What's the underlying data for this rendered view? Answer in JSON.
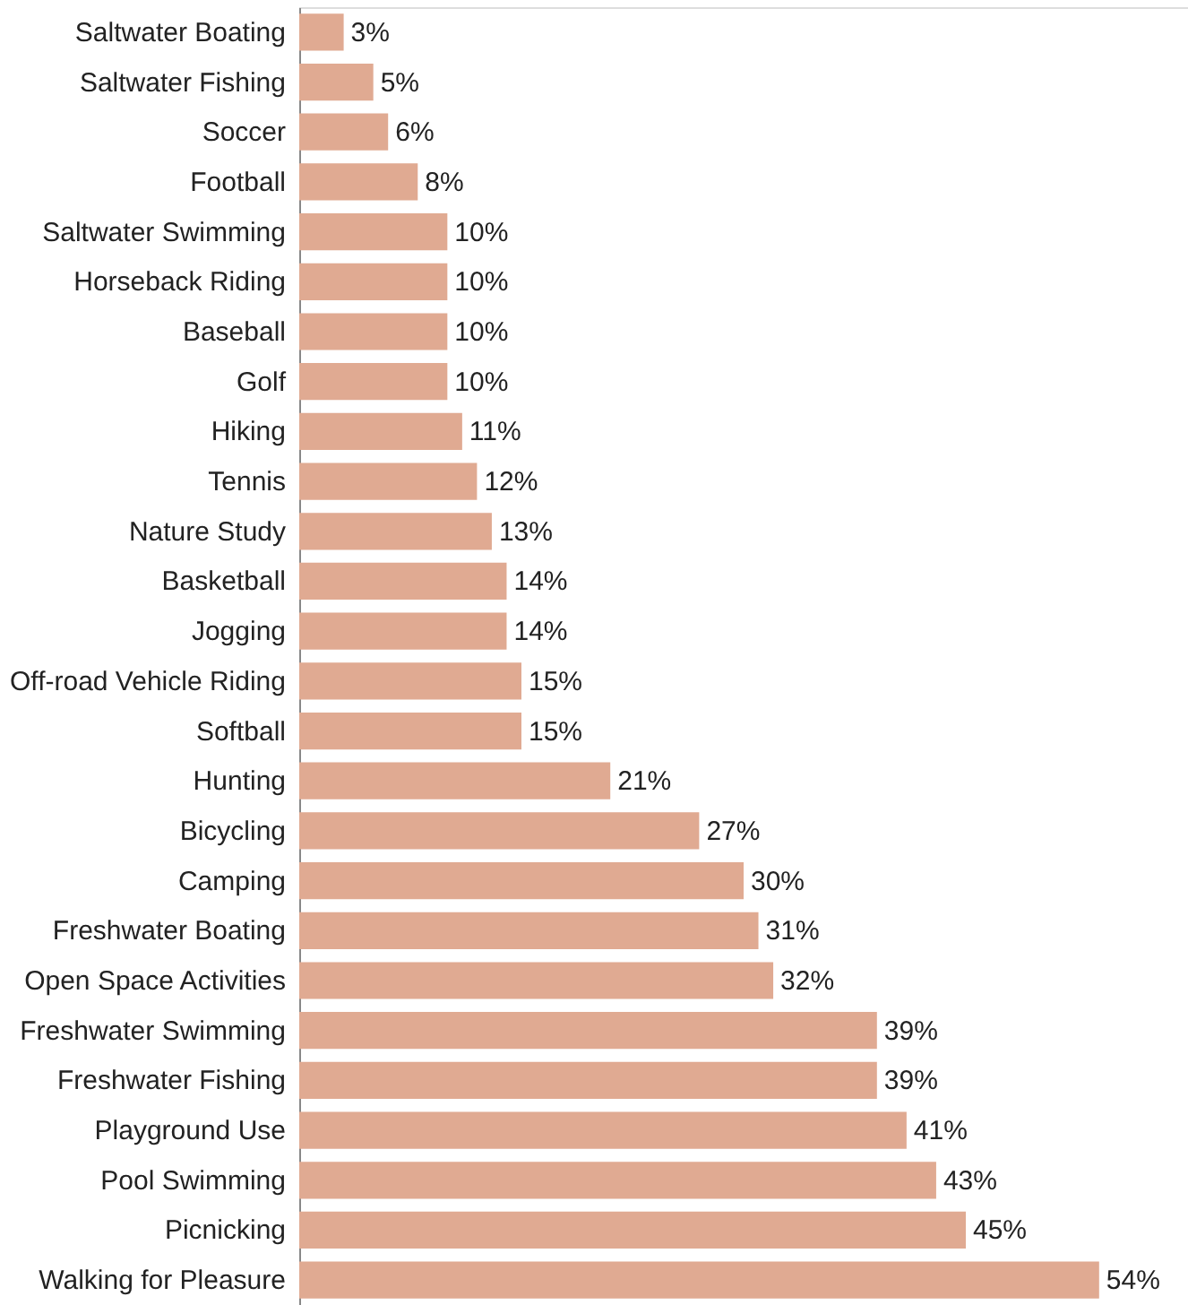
{
  "chart_data": {
    "type": "bar",
    "orientation": "horizontal",
    "categories": [
      "Saltwater Boating",
      "Saltwater Fishing",
      "Soccer",
      "Football",
      "Saltwater Swimming",
      "Horseback Riding",
      "Baseball",
      "Golf",
      "Hiking",
      "Tennis",
      "Nature Study",
      "Basketball",
      "Jogging",
      "Off-road Vehicle Riding",
      "Softball",
      "Hunting",
      "Bicycling",
      "Camping",
      "Freshwater Boating",
      "Open Space Activities",
      "Freshwater Swimming",
      "Freshwater Fishing",
      "Playground Use",
      "Pool Swimming",
      "Picnicking",
      "Walking for Pleasure"
    ],
    "values": [
      3,
      5,
      6,
      8,
      10,
      10,
      10,
      10,
      11,
      12,
      13,
      14,
      14,
      15,
      15,
      21,
      27,
      30,
      31,
      32,
      39,
      39,
      41,
      43,
      45,
      54
    ],
    "value_labels": [
      "3%",
      "5%",
      "6%",
      "8%",
      "10%",
      "10%",
      "10%",
      "10%",
      "11%",
      "12%",
      "13%",
      "14%",
      "14%",
      "15%",
      "15%",
      "21%",
      "27%",
      "30%",
      "31%",
      "32%",
      "39%",
      "39%",
      "41%",
      "43%",
      "45%",
      "54%"
    ],
    "color": "#e0aa92",
    "xlim": [
      0,
      60
    ],
    "tick_labels": "y"
  }
}
